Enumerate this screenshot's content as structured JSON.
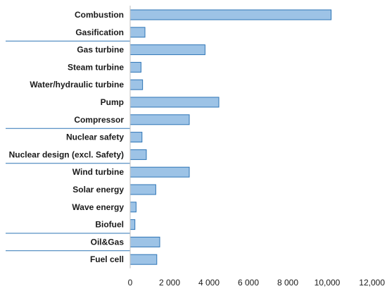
{
  "chart_data": {
    "type": "bar",
    "orientation": "horizontal",
    "categories": [
      "Combustion",
      "Gasification",
      "Gas turbine",
      "Steam turbine",
      "Water/hydraulic turbine",
      "Pump",
      "Compressor",
      "Nuclear safety",
      "Nuclear design (excl. Safety)",
      "Wind turbine",
      "Solar energy",
      "Wave energy",
      "Biofuel",
      "Oil&Gas",
      "Fuel cell"
    ],
    "values": [
      10200,
      750,
      3800,
      550,
      630,
      4500,
      3000,
      600,
      820,
      3000,
      1300,
      300,
      240,
      1500,
      1350
    ],
    "group_separators_after": [
      1,
      6,
      8,
      12,
      13
    ],
    "xlim": [
      0,
      12000
    ],
    "xticks": [
      0,
      2000,
      4000,
      6000,
      8000,
      10000,
      12000
    ],
    "xtick_labels": [
      "0",
      "2 000",
      "4 000",
      "6 000",
      "8 000",
      "10,000",
      "12,000"
    ],
    "title": "",
    "xlabel": "",
    "ylabel": "",
    "grid": false,
    "colors": {
      "bar_fill": "#9dc3e6",
      "bar_stroke": "#2e75b6",
      "separator": "#2e75b6"
    }
  }
}
